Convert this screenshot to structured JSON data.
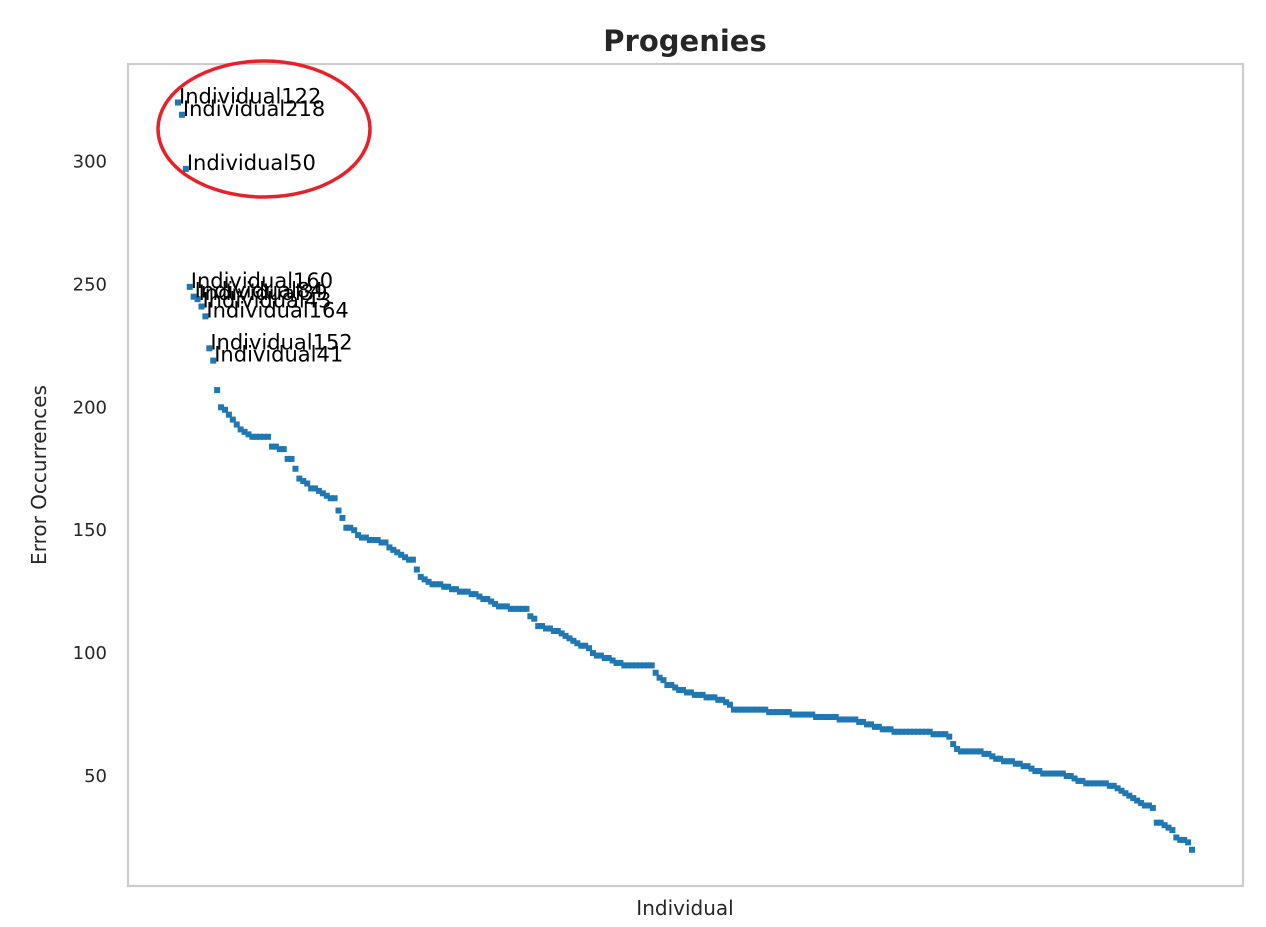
{
  "chart_data": {
    "type": "scatter",
    "title": "Progenies",
    "xlabel": "Individual",
    "ylabel": "Error Occurrences",
    "ylim": [
      5,
      344
    ],
    "yticks": [
      50,
      100,
      150,
      200,
      250,
      300
    ],
    "xticks_shown": false,
    "grid": false,
    "marker": "square",
    "color": "#1f77b4",
    "highlight_color": "#e8202a",
    "annotations": [
      {
        "label": "Individual122",
        "x": 0,
        "y": 324
      },
      {
        "label": "Individual218",
        "x": 1,
        "y": 319
      },
      {
        "label": "Individual50",
        "x": 2,
        "y": 297
      },
      {
        "label": "Individual160",
        "x": 3,
        "y": 249
      },
      {
        "label": "Individual84",
        "x": 4,
        "y": 245
      },
      {
        "label": "Individual39",
        "x": 5,
        "y": 244
      },
      {
        "label": "Individual43",
        "x": 6,
        "y": 241
      },
      {
        "label": "Individual164",
        "x": 7,
        "y": 237
      },
      {
        "label": "Individual152",
        "x": 8,
        "y": 224
      },
      {
        "label": "Individual41",
        "x": 9,
        "y": 219
      }
    ],
    "highlighted_labels": [
      "Individual122",
      "Individual218",
      "Individual50"
    ],
    "values": [
      324,
      319,
      297,
      249,
      245,
      244,
      241,
      237,
      224,
      219,
      207,
      200,
      199,
      197,
      195,
      193,
      191,
      190,
      189,
      188,
      188,
      188,
      188,
      188,
      184,
      184,
      183,
      183,
      179,
      179,
      175,
      171,
      170,
      169,
      167,
      167,
      166,
      165,
      164,
      163,
      163,
      158,
      155,
      151,
      151,
      150,
      148,
      147,
      147,
      146,
      146,
      146,
      145,
      145,
      143,
      142,
      141,
      140,
      139,
      138,
      138,
      134,
      131,
      130,
      129,
      128,
      128,
      128,
      127,
      127,
      126,
      126,
      125,
      125,
      125,
      124,
      124,
      123,
      122,
      122,
      121,
      120,
      119,
      119,
      119,
      118,
      118,
      118,
      118,
      118,
      115,
      114,
      111,
      111,
      110,
      110,
      109,
      109,
      108,
      107,
      106,
      105,
      104,
      103,
      103,
      102,
      100,
      99,
      99,
      98,
      98,
      97,
      96,
      96,
      95,
      95,
      95,
      95,
      95,
      95,
      95,
      95,
      92,
      90,
      89,
      87,
      87,
      86,
      85,
      85,
      84,
      84,
      83,
      83,
      83,
      82,
      82,
      82,
      81,
      81,
      80,
      79,
      77,
      77,
      77,
      77,
      77,
      77,
      77,
      77,
      77,
      76,
      76,
      76,
      76,
      76,
      76,
      75,
      75,
      75,
      75,
      75,
      75,
      74,
      74,
      74,
      74,
      74,
      74,
      73,
      73,
      73,
      73,
      73,
      72,
      72,
      71,
      71,
      70,
      70,
      69,
      69,
      69,
      68,
      68,
      68,
      68,
      68,
      68,
      68,
      68,
      68,
      68,
      67,
      67,
      67,
      67,
      66,
      63,
      61,
      60,
      60,
      60,
      60,
      60,
      60,
      59,
      59,
      58,
      57,
      57,
      56,
      56,
      56,
      55,
      55,
      54,
      54,
      53,
      52,
      52,
      51,
      51,
      51,
      51,
      51,
      51,
      50,
      50,
      49,
      48,
      48,
      47,
      47,
      47,
      47,
      47,
      47,
      46,
      46,
      45,
      44,
      43,
      42,
      41,
      40,
      39,
      38,
      38,
      37,
      31,
      31,
      30,
      29,
      28,
      25,
      24,
      24,
      23,
      20
    ]
  }
}
